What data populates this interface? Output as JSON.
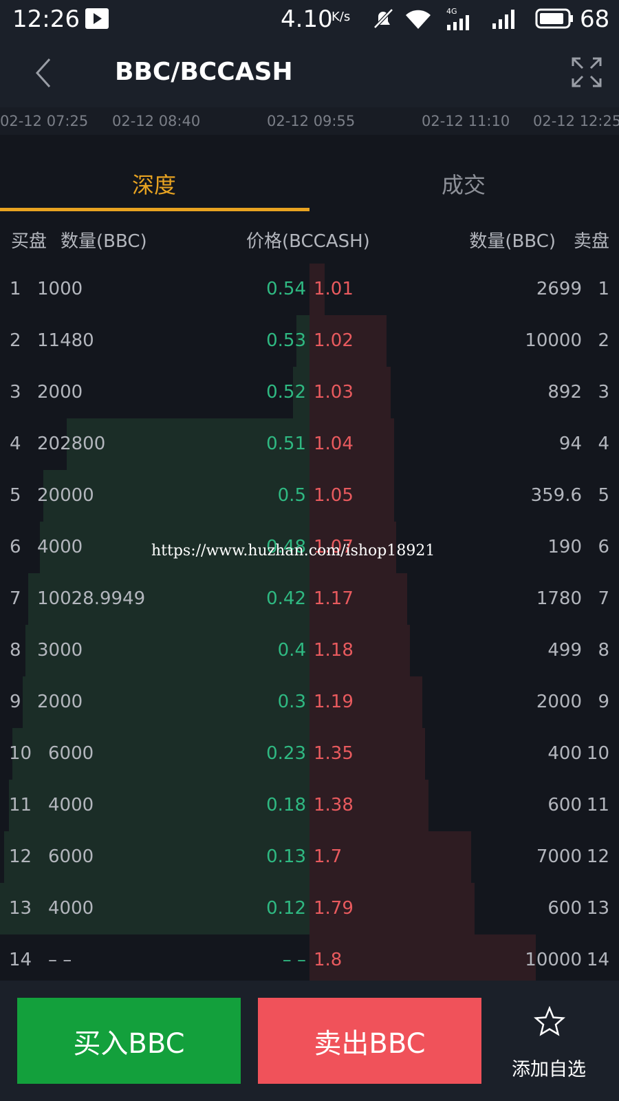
{
  "status_bar": {
    "time": "12:26",
    "speed": "4.10",
    "speed_unit": "K/s",
    "network": "4G",
    "battery": "68"
  },
  "header": {
    "title": "BBC/BCCASH"
  },
  "timeline": [
    "02-12 07:25",
    "02-12 08:40",
    "02-12 09:55",
    "02-12 11:10",
    "02-12 12:25"
  ],
  "tabs": [
    "深度",
    "成交"
  ],
  "columns": {
    "buy": "买盘",
    "buy_qty": "数量(BBC)",
    "price": "价格(BCCASH)",
    "sell_qty": "数量(BBC)",
    "sell": "卖盘"
  },
  "rows": [
    {
      "index": "1",
      "buy_qty": "1000",
      "buy_price": "0.54",
      "sell_price": "1.01",
      "sell_qty": "2699"
    },
    {
      "index": "2",
      "buy_qty": "11480",
      "buy_price": "0.53",
      "sell_price": "1.02",
      "sell_qty": "10000"
    },
    {
      "index": "3",
      "buy_qty": "2000",
      "buy_price": "0.52",
      "sell_price": "1.03",
      "sell_qty": "892"
    },
    {
      "index": "4",
      "buy_qty": "202800",
      "buy_price": "0.51",
      "sell_price": "1.04",
      "sell_qty": "94"
    },
    {
      "index": "5",
      "buy_qty": "20000",
      "buy_price": "0.5",
      "sell_price": "1.05",
      "sell_qty": "359.6"
    },
    {
      "index": "6",
      "buy_qty": "4000",
      "buy_price": "0.48",
      "sell_price": "1.07",
      "sell_qty": "190"
    },
    {
      "index": "7",
      "buy_qty": "10028.9949",
      "buy_price": "0.42",
      "sell_price": "1.17",
      "sell_qty": "1780"
    },
    {
      "index": "8",
      "buy_qty": "3000",
      "buy_price": "0.4",
      "sell_price": "1.18",
      "sell_qty": "499"
    },
    {
      "index": "9",
      "buy_qty": "2000",
      "buy_price": "0.3",
      "sell_price": "1.19",
      "sell_qty": "2000"
    },
    {
      "index": "10",
      "buy_qty": "6000",
      "buy_price": "0.23",
      "sell_price": "1.35",
      "sell_qty": "400"
    },
    {
      "index": "11",
      "buy_qty": "4000",
      "buy_price": "0.18",
      "sell_price": "1.38",
      "sell_qty": "600"
    },
    {
      "index": "12",
      "buy_qty": "6000",
      "buy_price": "0.13",
      "sell_price": "1.7",
      "sell_qty": "7000"
    },
    {
      "index": "13",
      "buy_qty": "4000",
      "buy_price": "0.12",
      "sell_price": "1.79",
      "sell_qty": "600"
    },
    {
      "index": "14",
      "buy_qty": "– –",
      "buy_price": "– –",
      "sell_price": "1.8",
      "sell_qty": "10000"
    }
  ],
  "watermark": "https://www.huzhan.com/ishop18921",
  "actions": {
    "buy": "买入BBC",
    "sell": "卖出BBC",
    "favorite": "添加自选"
  }
}
